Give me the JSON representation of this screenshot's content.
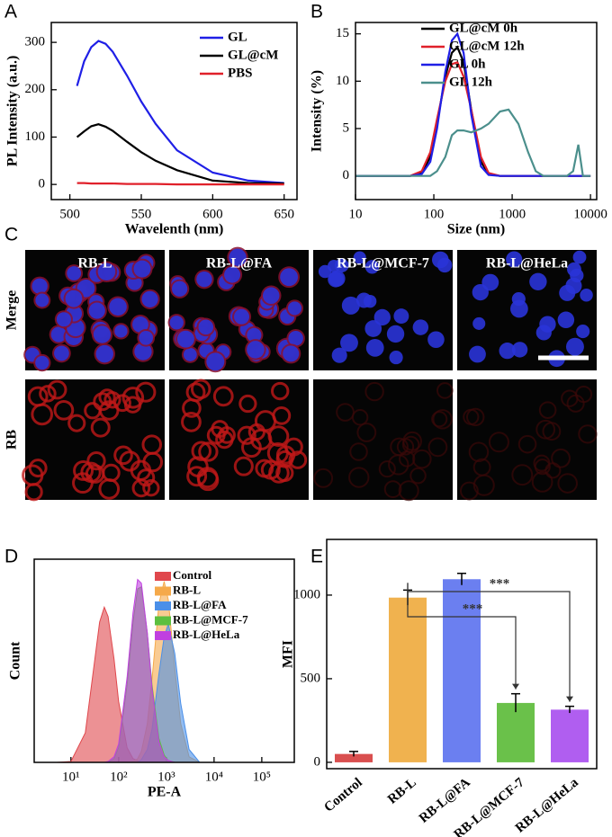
{
  "chart_data": [
    {
      "type": "line",
      "panel_label": "A",
      "xlabel": "Wavelenth (nm)",
      "ylabel": "PL Intensity (a.u.)",
      "x": [
        505,
        510,
        515,
        520,
        525,
        530,
        540,
        550,
        560,
        575,
        600,
        625,
        650
      ],
      "series": [
        {
          "name": "GL",
          "color": "#1f1fe6",
          "values": [
            208,
            260,
            290,
            303,
            297,
            280,
            230,
            175,
            128,
            72,
            25,
            8,
            3
          ]
        },
        {
          "name": "GL@cM",
          "color": "#000000",
          "values": [
            100,
            112,
            123,
            127,
            122,
            113,
            90,
            68,
            50,
            30,
            8,
            3,
            2
          ]
        },
        {
          "name": "PBS",
          "color": "#e0202a",
          "values": [
            3,
            3,
            2,
            2,
            2,
            2,
            1,
            1,
            1,
            0,
            0,
            0,
            0
          ]
        }
      ],
      "xlim": [
        487,
        659
      ],
      "xticks": [
        500,
        550,
        600,
        650
      ],
      "ylim": [
        -32,
        342
      ],
      "yticks": [
        0,
        100,
        200,
        300
      ],
      "legend": "upper right"
    },
    {
      "type": "line",
      "panel_label": "B",
      "xlabel": "Size (nm)",
      "ylabel": "Intensity (%)",
      "xscale": "log",
      "x": [
        10,
        50,
        70,
        90,
        110,
        140,
        170,
        200,
        240,
        300,
        400,
        500,
        700,
        900,
        1200,
        1600,
        2000,
        2500,
        3000,
        4000,
        5000,
        6000,
        7000,
        8000,
        10000
      ],
      "series": [
        {
          "name": "GL@cM 0h",
          "color": "#000000",
          "values": [
            0,
            0,
            0.3,
            2,
            5.5,
            10.5,
            13,
            13.6,
            12,
            7,
            1.5,
            0.2,
            0,
            0,
            0,
            0,
            0,
            0,
            0,
            0,
            0,
            0,
            0,
            0,
            0
          ]
        },
        {
          "name": "GL@cM 12h",
          "color": "#e0202a",
          "values": [
            0,
            0,
            0.5,
            2.5,
            6,
            10,
            11.8,
            12,
            10.5,
            7,
            2,
            0.3,
            0,
            0,
            0,
            0,
            0,
            0,
            0,
            0,
            0,
            0,
            0,
            0,
            0
          ]
        },
        {
          "name": "GL 0h",
          "color": "#1f1fe6",
          "values": [
            0,
            0,
            0.2,
            1.5,
            5,
            11,
            14.3,
            15,
            13,
            6.5,
            1,
            0.1,
            0,
            0,
            0,
            0,
            0,
            0,
            0,
            0,
            0,
            0,
            0,
            0,
            0
          ]
        },
        {
          "name": "GL 12h",
          "color": "#4b8f8c",
          "values": [
            0,
            0,
            0,
            0,
            0.5,
            2,
            4.3,
            4.8,
            4.8,
            4.6,
            5,
            5.5,
            6.8,
            7,
            5.5,
            2.5,
            0.5,
            0,
            0,
            0,
            0,
            0.5,
            3.3,
            0,
            0
          ]
        }
      ],
      "xlim": [
        10,
        12000
      ],
      "xticks": [
        10,
        100,
        1000,
        10000
      ],
      "ylim": [
        -2.5,
        16.2
      ],
      "yticks": [
        0,
        5,
        10,
        15
      ],
      "legend": "upper right"
    },
    {
      "type": "area",
      "panel_label": "D",
      "xlabel": "PE-A",
      "ylabel": "Count",
      "xscale": "log",
      "x": [
        5,
        10,
        20,
        30,
        40,
        50,
        60,
        80,
        100,
        150,
        200,
        250,
        300,
        400,
        500,
        700,
        900,
        1100,
        1500,
        2000,
        3000,
        5000
      ],
      "series": [
        {
          "name": "Control",
          "color": "#e0474c",
          "values": [
            0,
            0.5,
            16,
            51,
            76,
            84,
            79,
            56,
            33,
            8,
            2,
            1,
            0,
            0,
            0,
            0,
            0,
            0,
            0,
            0,
            0,
            0
          ]
        },
        {
          "name": "RB-L",
          "color": "#f5a94a",
          "values": [
            0,
            0,
            0,
            0,
            0,
            0,
            0,
            0,
            0,
            0,
            0.5,
            2,
            6,
            21,
            45,
            86,
            98,
            88,
            51,
            21,
            3,
            0
          ]
        },
        {
          "name": "RB-L@FA",
          "color": "#4a8fe8",
          "values": [
            0,
            0,
            0,
            0,
            0,
            0,
            0,
            0,
            0,
            0,
            0,
            0,
            1.5,
            7,
            18,
            48,
            68,
            75,
            59,
            32,
            7,
            0
          ]
        },
        {
          "name": "RB-L@MCF-7",
          "color": "#5cbf3f",
          "values": [
            0,
            0,
            0,
            0,
            0,
            0,
            0,
            2,
            8,
            42,
            76,
            94,
            95,
            70,
            42,
            13,
            4,
            1,
            0,
            0,
            0,
            0
          ]
        },
        {
          "name": "RB-L@HeLa",
          "color": "#c040e0",
          "values": [
            0,
            0,
            0,
            0,
            0,
            0,
            0.5,
            3,
            10,
            46,
            81,
            99,
            97,
            70,
            40,
            11,
            3,
            1,
            0,
            0,
            0,
            0
          ]
        }
      ],
      "xlim": [
        1.7,
        480000
      ],
      "xticks": [
        {
          "value": 10,
          "label": "10¹"
        },
        {
          "value": 100,
          "label": "10²"
        },
        {
          "value": 1000,
          "label": "10³"
        },
        {
          "value": 10000,
          "label": "10⁴"
        },
        {
          "value": 100000,
          "label": "10⁵"
        }
      ],
      "ylim": [
        0,
        110
      ],
      "legend": "upper right"
    },
    {
      "type": "bar",
      "panel_label": "E",
      "ylabel": "MFI",
      "categories": [
        "Control",
        "RB-L",
        "RB-L@FA",
        "RB-L@MCF-7",
        "RB-L@HeLa"
      ],
      "values": [
        50,
        985,
        1095,
        355,
        315
      ],
      "errors": [
        15,
        45,
        35,
        55,
        20
      ],
      "colors": [
        "#d94f4f",
        "#f0b24f",
        "#6b7ff0",
        "#6ac14a",
        "#b05ef0"
      ],
      "ylim": [
        -38,
        1333
      ],
      "yticks": [
        0,
        500,
        1000
      ],
      "significance": [
        {
          "from": "RB-L",
          "to": "RB-L@MCF-7",
          "label": "***"
        },
        {
          "from": "RB-L",
          "to": "RB-L@HeLa",
          "label": "***"
        }
      ]
    }
  ],
  "image_panel": {
    "panel_label": "C",
    "columns": [
      "RB-L",
      "RB-L@FA",
      "RB-L@MCF-7",
      "RB-L@HeLa"
    ],
    "rows": [
      "Merge",
      "RB"
    ]
  }
}
